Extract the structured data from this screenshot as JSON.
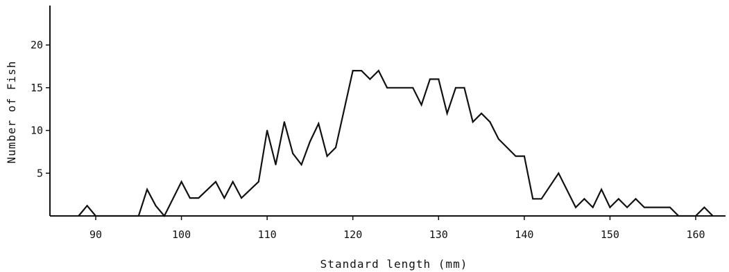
{
  "chart_data": {
    "type": "line",
    "title": "",
    "xlabel": "Standard length (mm)",
    "ylabel": "Number of Fish",
    "xlim": [
      85,
      163
    ],
    "ylim": [
      0,
      24
    ],
    "xticks": [
      90,
      100,
      110,
      120,
      130,
      140,
      150,
      160
    ],
    "xtick_labels": [
      "90",
      "100",
      "110",
      "120",
      "130",
      "140",
      "150",
      "160"
    ],
    "yticks": [
      5,
      10,
      15,
      20
    ],
    "ytick_labels": [
      "5",
      "10",
      "15",
      "20"
    ],
    "grid": false,
    "series": [
      {
        "x": [
          88,
          89,
          90,
          95,
          96,
          97,
          98,
          100,
          101,
          102,
          104,
          105,
          106,
          107,
          109,
          110,
          111,
          112,
          113,
          114,
          115,
          116,
          117,
          118,
          120,
          121,
          122,
          123,
          124,
          127,
          128,
          129,
          130,
          131,
          132,
          133,
          134,
          135,
          136,
          137,
          139,
          140,
          141,
          142,
          144,
          146,
          147,
          148,
          149,
          150,
          151,
          152,
          153,
          154,
          157,
          158,
          160,
          161,
          162
        ],
        "y": [
          0,
          1.2,
          0,
          0,
          3.1,
          1.2,
          0,
          4,
          2.1,
          2.1,
          4,
          2.1,
          4,
          2.1,
          4,
          10,
          6,
          11,
          7.3,
          6,
          8.7,
          10.8,
          7,
          8,
          17,
          17,
          16,
          17,
          15,
          15,
          13,
          16,
          16,
          12,
          15,
          15,
          11,
          12,
          11,
          9,
          7,
          7,
          2,
          2,
          5,
          1,
          2,
          1,
          3.1,
          1,
          2,
          1,
          2,
          1,
          1,
          0,
          0,
          1,
          0
        ]
      }
    ]
  }
}
